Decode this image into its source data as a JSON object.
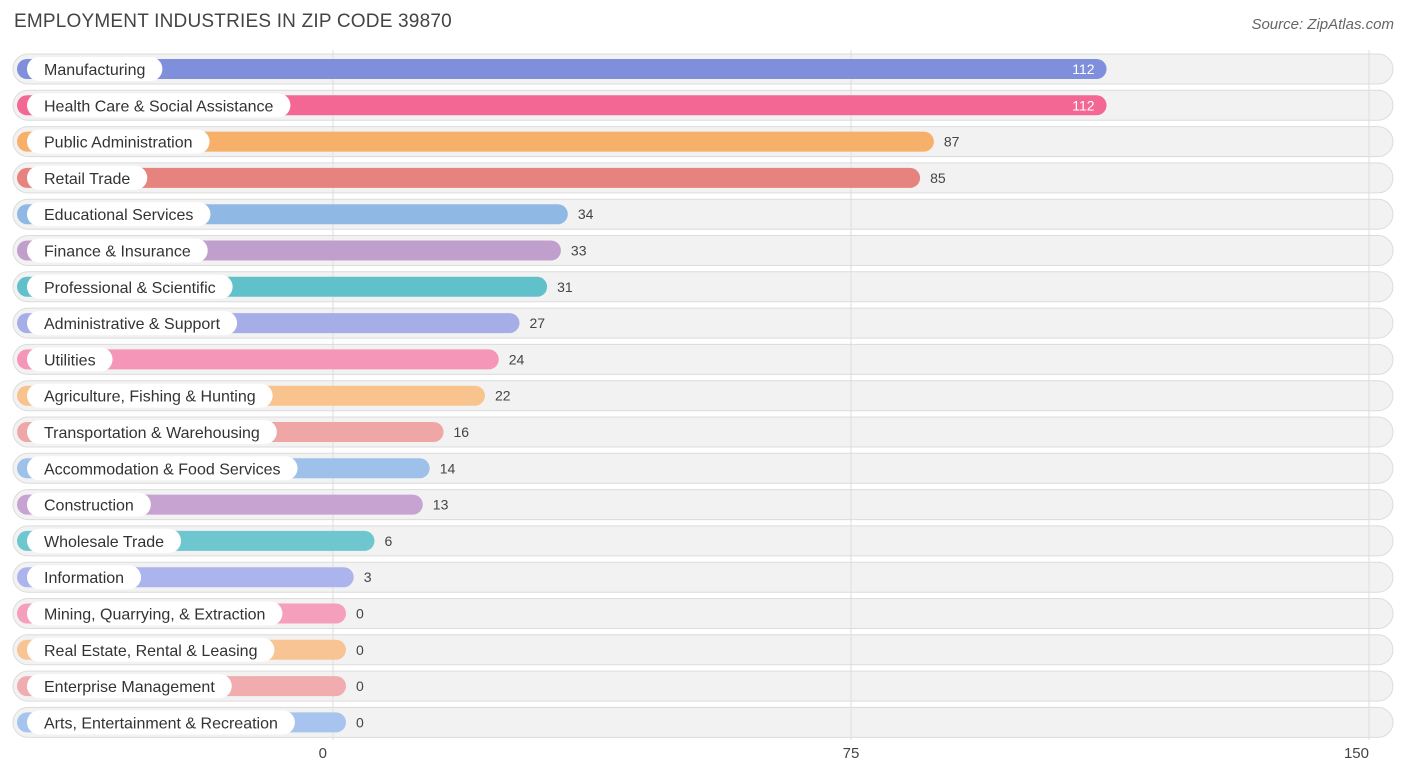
{
  "header": {
    "title": "EMPLOYMENT INDUSTRIES IN ZIP CODE 39870",
    "source": "Source: ZipAtlas.com"
  },
  "chart_data": {
    "type": "bar",
    "orientation": "horizontal",
    "title": "EMPLOYMENT INDUSTRIES IN ZIP CODE 39870",
    "xlabel": "",
    "ylabel": "",
    "xlim": [
      0,
      150
    ],
    "ticks": [
      0,
      75,
      150
    ],
    "tick_labels": [
      "0",
      "75",
      "150"
    ],
    "grid": true,
    "categories": [
      "Manufacturing",
      "Health Care & Social Assistance",
      "Public Administration",
      "Retail Trade",
      "Educational Services",
      "Finance & Insurance",
      "Professional & Scientific",
      "Administrative & Support",
      "Utilities",
      "Agriculture, Fishing & Hunting",
      "Transportation & Warehousing",
      "Accommodation & Food Services",
      "Construction",
      "Wholesale Trade",
      "Information",
      "Mining, Quarrying, & Extraction",
      "Real Estate, Rental & Leasing",
      "Enterprise Management",
      "Arts, Entertainment & Recreation"
    ],
    "values": [
      112,
      112,
      87,
      85,
      34,
      33,
      31,
      27,
      24,
      22,
      16,
      14,
      13,
      6,
      3,
      0,
      0,
      0,
      0
    ],
    "colors": [
      "#7f8fdc",
      "#f26794",
      "#f7b06a",
      "#e6837e",
      "#8fb9e4",
      "#c19fcc",
      "#61c1cb",
      "#a6aee8",
      "#f596b8",
      "#f8c38d",
      "#efa6a6",
      "#9ec1ea",
      "#c7a3d1",
      "#6ec6cf",
      "#abb4ec",
      "#f59fbd",
      "#f9c494",
      "#f0acae",
      "#a7c4ee"
    ]
  }
}
